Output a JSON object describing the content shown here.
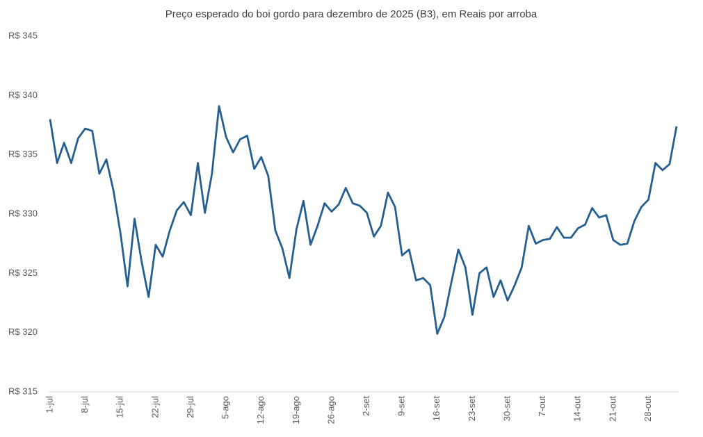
{
  "chart_data": {
    "type": "line",
    "title": "Preço esperado do boi gordo para dezembro de 2025 (B3), em Reais por arroba",
    "categories": [
      "1-jul",
      null,
      null,
      null,
      null,
      "8-jul",
      null,
      null,
      null,
      null,
      "15-jul",
      null,
      null,
      null,
      null,
      "22-jul",
      null,
      null,
      null,
      null,
      "29-jul",
      null,
      null,
      null,
      null,
      "5-ago",
      null,
      null,
      null,
      null,
      "12-ago",
      null,
      null,
      null,
      null,
      "19-ago",
      null,
      null,
      null,
      null,
      "26-ago",
      null,
      null,
      null,
      null,
      "2-set",
      null,
      null,
      null,
      null,
      "9-set",
      null,
      null,
      null,
      null,
      "16-set",
      null,
      null,
      null,
      null,
      "23-set",
      null,
      null,
      null,
      null,
      "30-set",
      null,
      null,
      null,
      null,
      "7-out",
      null,
      null,
      null,
      null,
      "14-out",
      null,
      null,
      null,
      null,
      "21-out",
      null,
      null,
      null,
      null,
      "28-out",
      null,
      null,
      null,
      null
    ],
    "series": [
      {
        "color": "#255e91",
        "values": [
          338.0,
          334.3,
          336.0,
          334.3,
          336.4,
          337.2,
          337.0,
          333.4,
          334.6,
          332.0,
          328.4,
          323.9,
          329.6,
          326.0,
          323.0,
          327.4,
          326.4,
          328.6,
          330.3,
          331.0,
          329.9,
          334.3,
          330.1,
          333.4,
          339.1,
          336.5,
          335.2,
          336.3,
          336.6,
          333.8,
          334.8,
          333.2,
          328.6,
          327.1,
          324.6,
          328.7,
          331.1,
          327.4,
          329.0,
          330.9,
          330.2,
          330.8,
          332.2,
          330.9,
          330.7,
          330.1,
          328.1,
          329.0,
          331.8,
          330.6,
          326.5,
          327.0,
          324.4,
          324.6,
          324.0,
          319.9,
          321.3,
          324.2,
          327.0,
          325.5,
          321.5,
          325.0,
          325.5,
          323.0,
          324.4,
          322.7,
          324.0,
          325.5,
          329.0,
          327.5,
          327.8,
          327.9,
          328.9,
          328.0,
          328.0,
          328.8,
          329.1,
          330.5,
          329.7,
          329.9,
          327.8,
          327.4,
          327.5,
          329.4,
          330.6,
          331.2,
          334.3,
          333.7,
          334.2,
          337.4
        ]
      }
    ],
    "ylim": [
      315,
      345
    ],
    "yticks": [
      {
        "value": 315,
        "label": "R$ 315"
      },
      {
        "value": 320,
        "label": "R$ 320"
      },
      {
        "value": 325,
        "label": "R$ 325"
      },
      {
        "value": 330,
        "label": "R$ 330"
      },
      {
        "value": 335,
        "label": "R$ 335"
      },
      {
        "value": 340,
        "label": "R$ 340"
      },
      {
        "value": 345,
        "label": "R$ 345"
      }
    ],
    "grid": false
  }
}
